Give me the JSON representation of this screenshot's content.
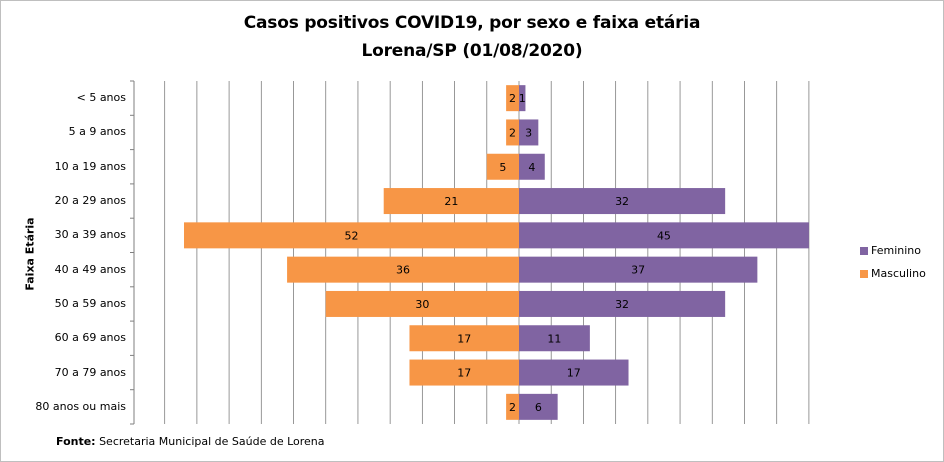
{
  "chart_data": {
    "type": "bar",
    "orientation": "horizontal",
    "layout": "population-pyramid",
    "title": "Casos positivos  COVID19, por sexo e faixa etária",
    "subtitle": "Lorena/SP (01/08/2020)",
    "ylabel": "Faixa Etária",
    "categories": [
      "< 5 anos",
      "5 a 9 anos",
      "10 a 19 anos",
      "20 a 29 anos",
      "30 a 39 anos",
      "40 a 49 anos",
      "50 a 59 anos",
      "60 a 69 anos",
      "70 a 79 anos",
      "80 anos ou mais"
    ],
    "series": [
      {
        "name": "Feminino",
        "color": "#8064a2",
        "side": "right",
        "values": [
          1,
          3,
          4,
          32,
          45,
          37,
          32,
          11,
          17,
          6
        ]
      },
      {
        "name": "Masculino",
        "color": "#f79646",
        "side": "left",
        "values": [
          2,
          2,
          5,
          21,
          52,
          36,
          30,
          17,
          17,
          2
        ]
      }
    ],
    "xlim": [
      -52,
      50
    ],
    "grid": true,
    "legend": "right"
  },
  "source": {
    "label": "Fonte:",
    "text": " Secretaria Municipal  de Saúde de Lorena"
  }
}
